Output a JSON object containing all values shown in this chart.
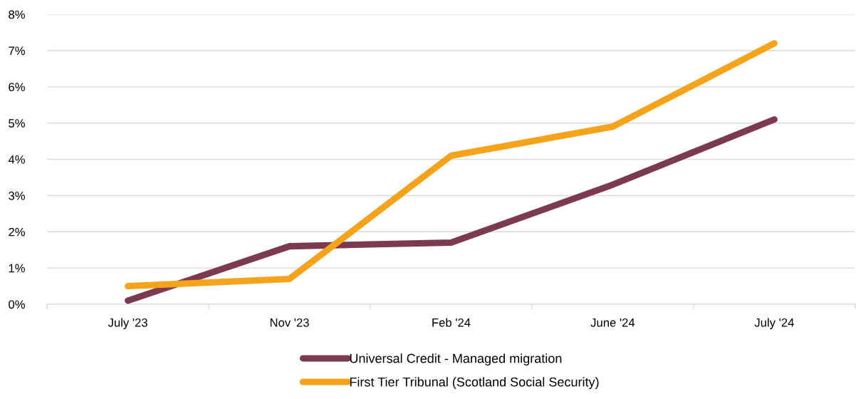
{
  "chart_data": {
    "type": "line",
    "categories": [
      "July '23",
      "Nov '23",
      "Feb '24",
      "June '24",
      "July '24"
    ],
    "series": [
      {
        "name": "Universal Credit - Managed migration",
        "color": "#7b3a4f",
        "values": [
          0.1,
          1.6,
          1.7,
          3.3,
          5.1
        ]
      },
      {
        "name": "First Tier Tribunal (Scotland Social Security)",
        "color": "#f5a31a",
        "values": [
          0.5,
          0.7,
          4.1,
          4.9,
          7.2
        ]
      }
    ],
    "ylim": [
      0,
      8
    ],
    "yticks": [
      {
        "value": 0,
        "label": "0%"
      },
      {
        "value": 1,
        "label": "1%"
      },
      {
        "value": 2,
        "label": "2%"
      },
      {
        "value": 3,
        "label": "3%"
      },
      {
        "value": 4,
        "label": "4%"
      },
      {
        "value": 5,
        "label": "5%"
      },
      {
        "value": 6,
        "label": "6%"
      },
      {
        "value": 7,
        "label": "7%"
      },
      {
        "value": 8,
        "label": "8%"
      }
    ],
    "grid": "y",
    "legend": "bottom",
    "marker": "none",
    "line_style": "solid"
  }
}
